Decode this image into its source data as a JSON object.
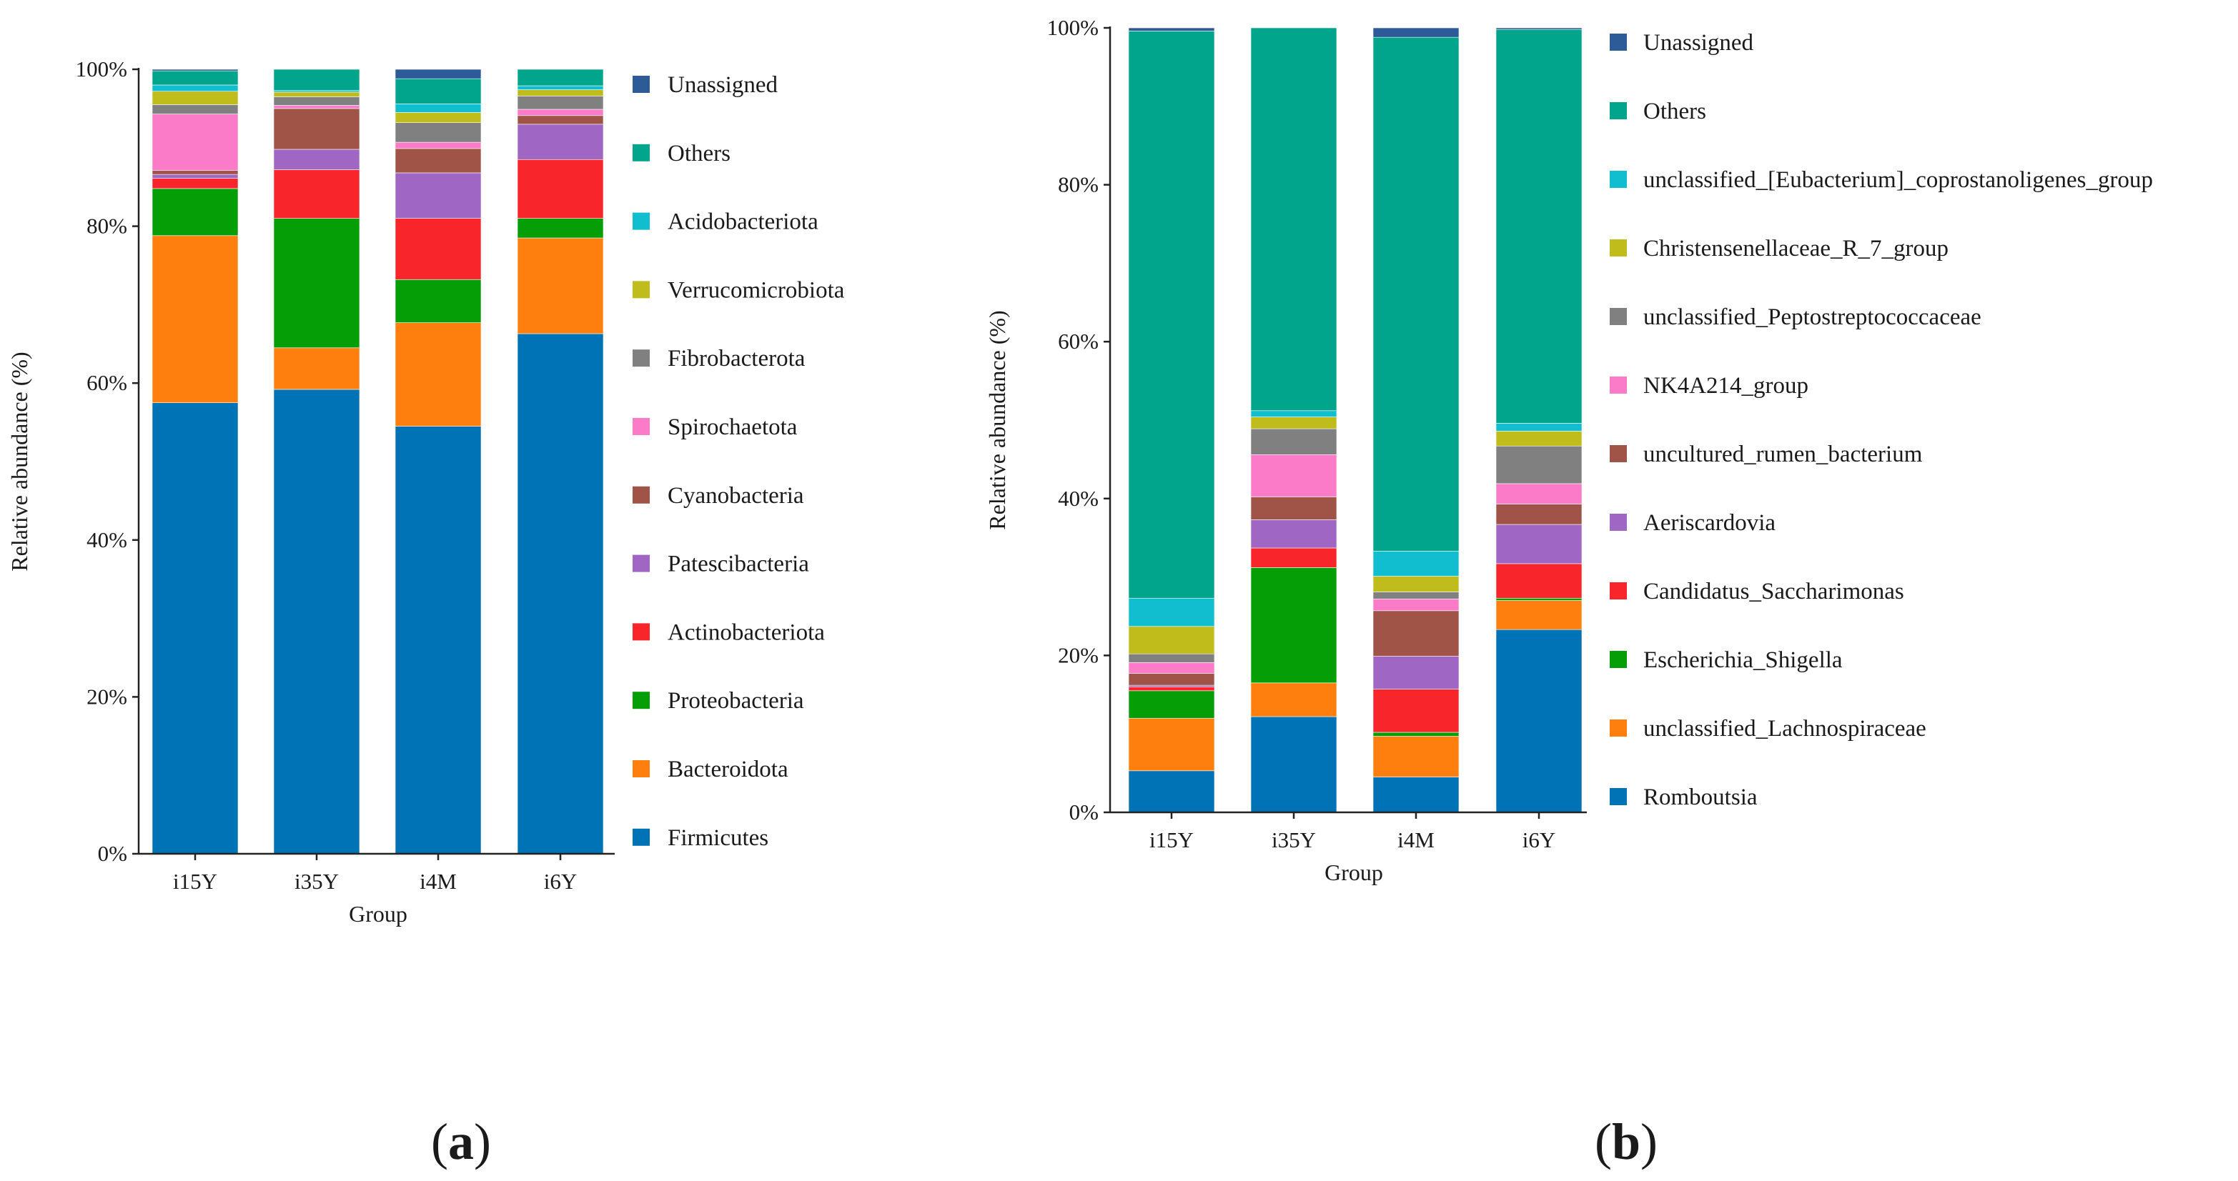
{
  "panels": [
    {
      "label": "a"
    },
    {
      "label": "b"
    }
  ],
  "chart_data": [
    {
      "type": "bar",
      "stacked": true,
      "categories": [
        "i15Y",
        "i35Y",
        "i4M",
        "i6Y"
      ],
      "xlabel": "Group",
      "ylabel": "Relative abundance (%)",
      "ylim": [
        0,
        100
      ],
      "yticks": [
        "0%",
        "20%",
        "40%",
        "60%",
        "80%",
        "100%"
      ],
      "legend_position": "right",
      "series": [
        {
          "name": "Firmicutes",
          "color": "#0073b6",
          "values": [
            57.5,
            59.2,
            54.5,
            66.3
          ]
        },
        {
          "name": "Bacteroidota",
          "color": "#ff7f0e",
          "values": [
            21.3,
            5.3,
            13.2,
            12.2
          ]
        },
        {
          "name": "Proteobacteria",
          "color": "#069e06",
          "values": [
            6.0,
            16.5,
            5.5,
            2.5
          ]
        },
        {
          "name": "Actinobacteriota",
          "color": "#f8252a",
          "values": [
            1.3,
            6.2,
            7.8,
            7.5
          ]
        },
        {
          "name": "Patescibacteria",
          "color": "#9f67c3",
          "values": [
            0.5,
            2.6,
            5.8,
            4.5
          ]
        },
        {
          "name": "Cyanobacteria",
          "color": "#9f5447",
          "values": [
            0.5,
            5.2,
            3.1,
            1.1
          ]
        },
        {
          "name": "Spirochaetota",
          "color": "#fb7bc9",
          "values": [
            7.2,
            0.4,
            0.8,
            0.8
          ]
        },
        {
          "name": "Fibrobacterota",
          "color": "#808080",
          "values": [
            1.2,
            1.1,
            2.5,
            1.7
          ]
        },
        {
          "name": "Verrucomicrobiota",
          "color": "#bfbc1b",
          "values": [
            1.7,
            0.6,
            1.3,
            0.8
          ]
        },
        {
          "name": "Acidobacteriota",
          "color": "#11bed0",
          "values": [
            0.8,
            0.2,
            1.1,
            0.5
          ]
        },
        {
          "name": "Others",
          "color": "#00a58b",
          "values": [
            1.8,
            2.7,
            3.2,
            2.1
          ]
        },
        {
          "name": "Unassigned",
          "color": "#2d5b98",
          "values": [
            0.2,
            0.0,
            1.2,
            0.0
          ]
        }
      ]
    },
    {
      "type": "bar",
      "stacked": true,
      "categories": [
        "i15Y",
        "i35Y",
        "i4M",
        "i6Y"
      ],
      "xlabel": "Group",
      "ylabel": "Relative abundance (%)",
      "ylim": [
        0,
        100
      ],
      "yticks": [
        "0%",
        "20%",
        "40%",
        "60%",
        "80%",
        "100%"
      ],
      "legend_position": "right",
      "series": [
        {
          "name": "Romboutsia",
          "color": "#0073b6",
          "values": [
            5.3,
            12.2,
            4.5,
            23.3
          ]
        },
        {
          "name": "unclassified_Lachnospiraceae",
          "color": "#ff7f0e",
          "values": [
            6.7,
            4.3,
            5.2,
            3.7
          ]
        },
        {
          "name": "Escherichia_Shigella",
          "color": "#069e06",
          "values": [
            3.5,
            14.7,
            0.5,
            0.3
          ]
        },
        {
          "name": "Candidatus_Saccharimonas",
          "color": "#f8252a",
          "values": [
            0.5,
            2.5,
            5.5,
            4.4
          ]
        },
        {
          "name": "Aeriscardovia",
          "color": "#9f67c3",
          "values": [
            0.2,
            3.6,
            4.2,
            5.0
          ]
        },
        {
          "name": "uncultured_rumen_bacterium",
          "color": "#9f5447",
          "values": [
            1.5,
            2.9,
            5.8,
            2.6
          ]
        },
        {
          "name": "NK4A214_group",
          "color": "#fb7bc9",
          "values": [
            1.4,
            5.4,
            1.5,
            2.6
          ]
        },
        {
          "name": "unclassified_Peptostreptococcaceae",
          "color": "#808080",
          "values": [
            1.1,
            3.3,
            0.9,
            4.8
          ]
        },
        {
          "name": "Christensenellaceae_R_7_group",
          "color": "#bfbc1b",
          "values": [
            3.5,
            1.5,
            2.0,
            1.9
          ]
        },
        {
          "name": "unclassified_[Eubacterium]_coprostanoligenes_group",
          "color": "#11bed0",
          "values": [
            3.6,
            0.8,
            3.2,
            1.0
          ]
        },
        {
          "name": "Others",
          "color": "#00a58b",
          "values": [
            72.3,
            48.8,
            65.5,
            50.2
          ]
        },
        {
          "name": "Unassigned",
          "color": "#2d5b98",
          "values": [
            0.4,
            0.0,
            1.2,
            0.2
          ]
        }
      ]
    }
  ]
}
